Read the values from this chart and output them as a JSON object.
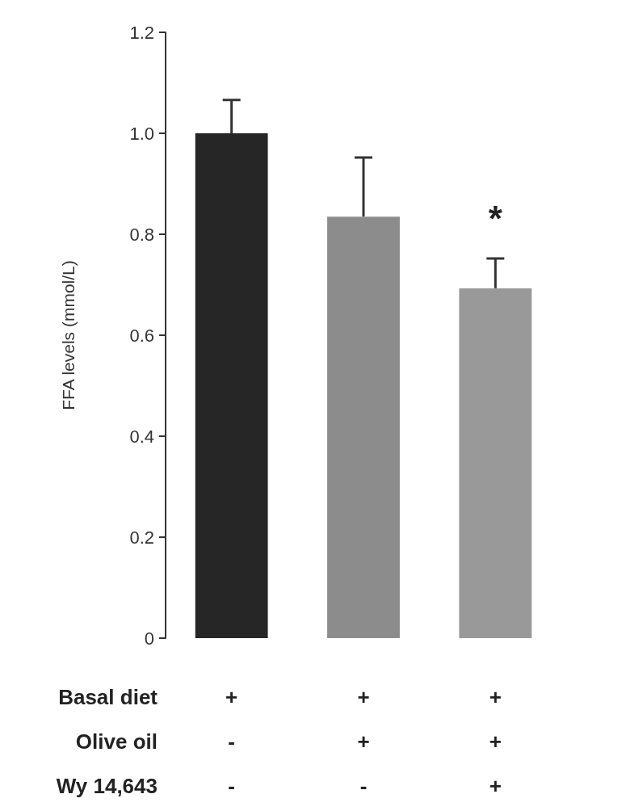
{
  "chart_data": {
    "type": "bar",
    "ylabel": "FFA levels (mmol/L)",
    "categories": [
      "+\n-\n-",
      "+\n+\n-",
      "+\n+\n+"
    ],
    "values": [
      1.0,
      0.835,
      0.693
    ],
    "colors": [
      "#262626",
      "#8c8c8c",
      "#999999"
    ],
    "errors": [
      [
        1.0,
        1.066
      ],
      [
        0.835,
        0.952
      ],
      [
        0.693,
        0.752
      ]
    ],
    "ylim": [
      0,
      1.2
    ],
    "yticks": [
      0,
      0.2,
      0.4,
      0.6,
      0.8,
      {
        "value": 1.0,
        "label": "1.0"
      },
      1.2
    ],
    "grid": false,
    "annotations": [
      "Basal diet",
      "Olive oil",
      "Wy 14,643",
      "*"
    ]
  }
}
